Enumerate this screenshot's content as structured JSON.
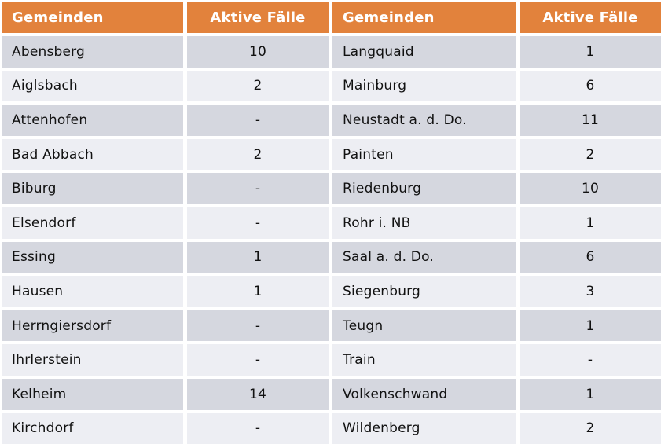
{
  "colors": {
    "header_bg": "#e2823c",
    "header_text": "#ffffff",
    "row_dark": "#d5d7df",
    "row_light": "#edeef3",
    "cell_text": "#111111"
  },
  "chart_data": {
    "type": "table",
    "columns": [
      "Gemeinden",
      "Aktive Fälle",
      "Gemeinden",
      "Aktive Fälle"
    ],
    "rows": [
      [
        "Abensberg",
        "10",
        "Langquaid",
        "1"
      ],
      [
        "Aiglsbach",
        "2",
        "Mainburg",
        "6"
      ],
      [
        "Attenhofen",
        "-",
        "Neustadt a. d. Do.",
        "11"
      ],
      [
        "Bad Abbach",
        "2",
        "Painten",
        "2"
      ],
      [
        "Biburg",
        "-",
        "Riedenburg",
        "10"
      ],
      [
        "Elsendorf",
        "-",
        "Rohr i. NB",
        "1"
      ],
      [
        "Essing",
        "1",
        "Saal a. d. Do.",
        "6"
      ],
      [
        "Hausen",
        "1",
        "Siegenburg",
        "3"
      ],
      [
        "Herrngiersdorf",
        "-",
        "Teugn",
        "1"
      ],
      [
        "Ihrlerstein",
        "-",
        "Train",
        "-"
      ],
      [
        "Kelheim",
        "14",
        "Volkenschwand",
        "1"
      ],
      [
        "Kirchdorf",
        "-",
        "Wildenberg",
        "2"
      ]
    ]
  }
}
